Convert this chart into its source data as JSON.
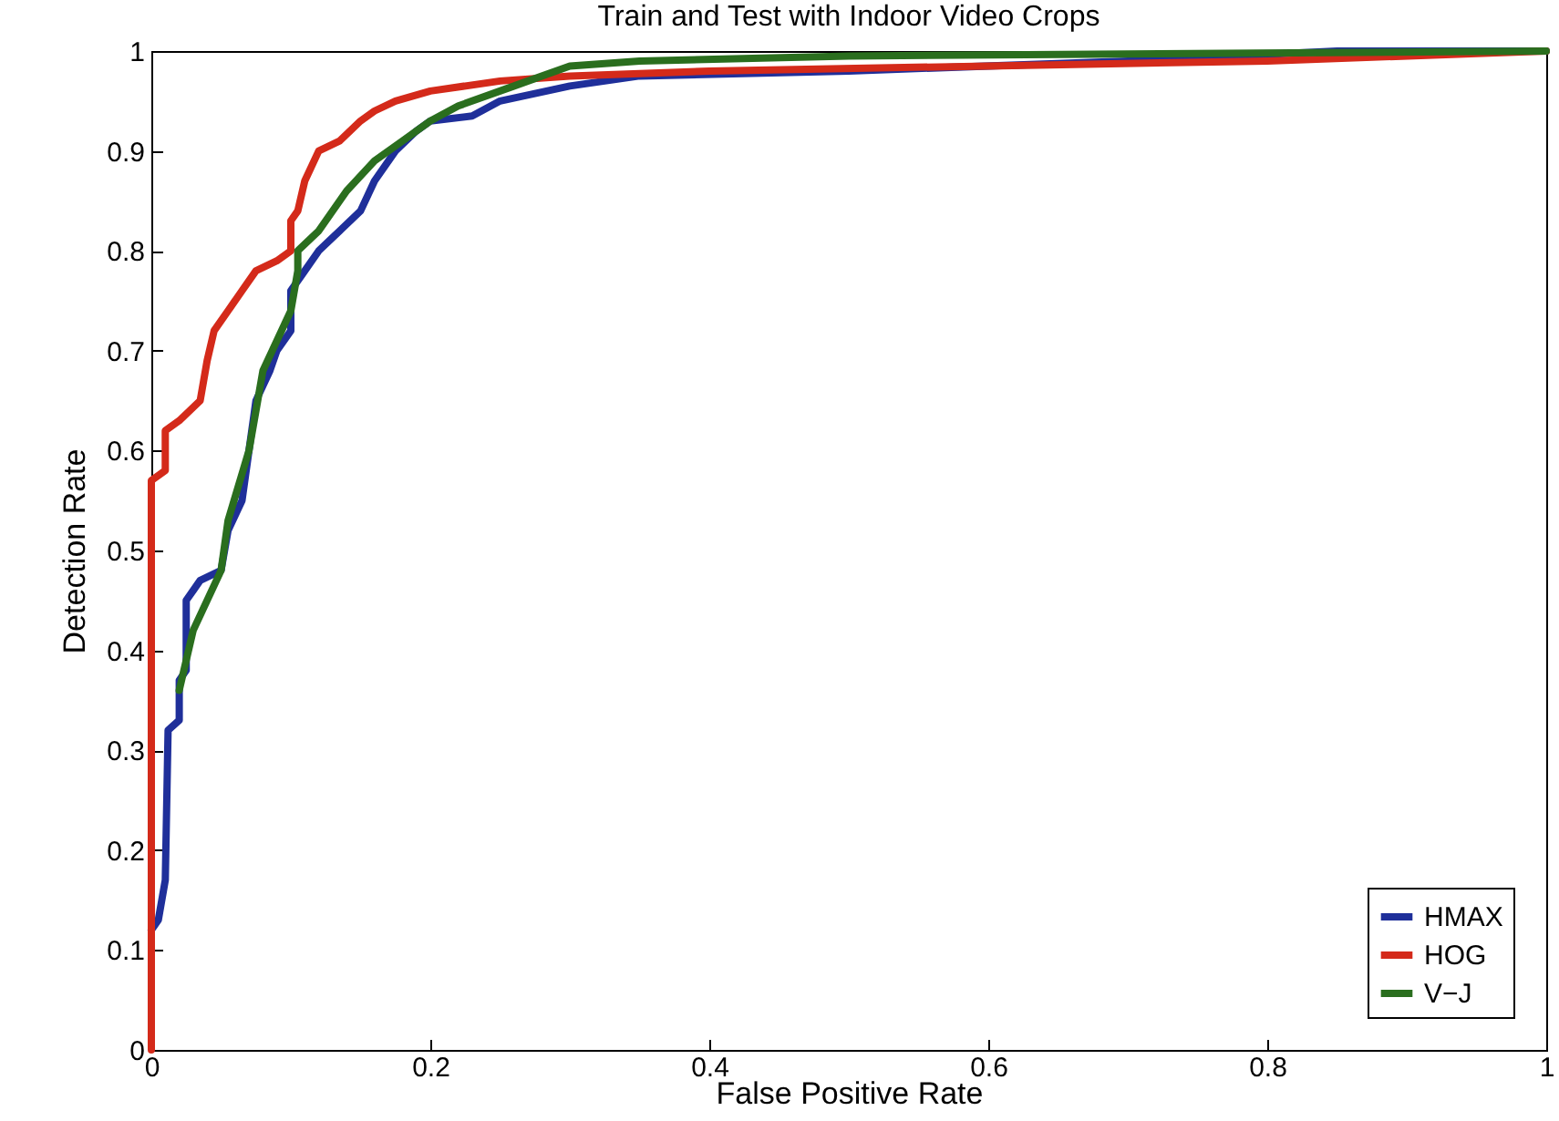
{
  "chart_data": {
    "type": "line",
    "title": "Train and Test with Indoor Video Crops",
    "xlabel": "False Positive Rate",
    "ylabel": "Detection Rate",
    "xlim": [
      0,
      1
    ],
    "ylim": [
      0,
      1
    ],
    "xticks": [
      0,
      0.2,
      0.4,
      0.6,
      0.8,
      1
    ],
    "yticks": [
      0,
      0.1,
      0.2,
      0.3,
      0.4,
      0.5,
      0.6,
      0.7,
      0.8,
      0.9,
      1
    ],
    "grid": false,
    "legend": "bottom right",
    "line_style": "solid",
    "marker": "none",
    "series": [
      {
        "name": "HMAX",
        "color": "#1f2f9a",
        "x": [
          0,
          0.005,
          0.01,
          0.012,
          0.02,
          0.02,
          0.025,
          0.025,
          0.03,
          0.035,
          0.05,
          0.055,
          0.065,
          0.07,
          0.075,
          0.085,
          0.09,
          0.1,
          0.1,
          0.11,
          0.12,
          0.135,
          0.15,
          0.16,
          0.175,
          0.19,
          0.2,
          0.23,
          0.25,
          0.3,
          0.35,
          0.5,
          0.7,
          0.85,
          1
        ],
        "values": [
          0.12,
          0.13,
          0.17,
          0.32,
          0.33,
          0.37,
          0.38,
          0.45,
          0.46,
          0.47,
          0.48,
          0.52,
          0.55,
          0.6,
          0.65,
          0.68,
          0.7,
          0.72,
          0.76,
          0.78,
          0.8,
          0.82,
          0.84,
          0.87,
          0.9,
          0.92,
          0.93,
          0.935,
          0.95,
          0.965,
          0.975,
          0.98,
          0.99,
          1,
          1
        ]
      },
      {
        "name": "HOG",
        "color": "#d42a1a",
        "x": [
          0,
          0,
          0.01,
          0.01,
          0.02,
          0.035,
          0.04,
          0.045,
          0.055,
          0.065,
          0.075,
          0.09,
          0.1,
          0.1,
          0.105,
          0.11,
          0.12,
          0.135,
          0.15,
          0.16,
          0.175,
          0.2,
          0.25,
          0.3,
          0.4,
          0.6,
          0.8,
          1
        ],
        "values": [
          0,
          0.57,
          0.58,
          0.62,
          0.63,
          0.65,
          0.69,
          0.72,
          0.74,
          0.76,
          0.78,
          0.79,
          0.8,
          0.83,
          0.84,
          0.87,
          0.9,
          0.91,
          0.93,
          0.94,
          0.95,
          0.96,
          0.97,
          0.975,
          0.98,
          0.985,
          0.99,
          1
        ]
      },
      {
        "name": "V−J",
        "color": "#2a6e1e",
        "x": [
          0.02,
          0.03,
          0.05,
          0.055,
          0.07,
          0.08,
          0.1,
          0.105,
          0.105,
          0.12,
          0.14,
          0.16,
          0.18,
          0.2,
          0.22,
          0.26,
          0.3,
          0.35,
          0.5,
          1
        ],
        "values": [
          0.36,
          0.42,
          0.48,
          0.53,
          0.6,
          0.68,
          0.74,
          0.78,
          0.8,
          0.82,
          0.86,
          0.89,
          0.91,
          0.93,
          0.945,
          0.965,
          0.985,
          0.99,
          0.995,
          1
        ]
      }
    ]
  }
}
